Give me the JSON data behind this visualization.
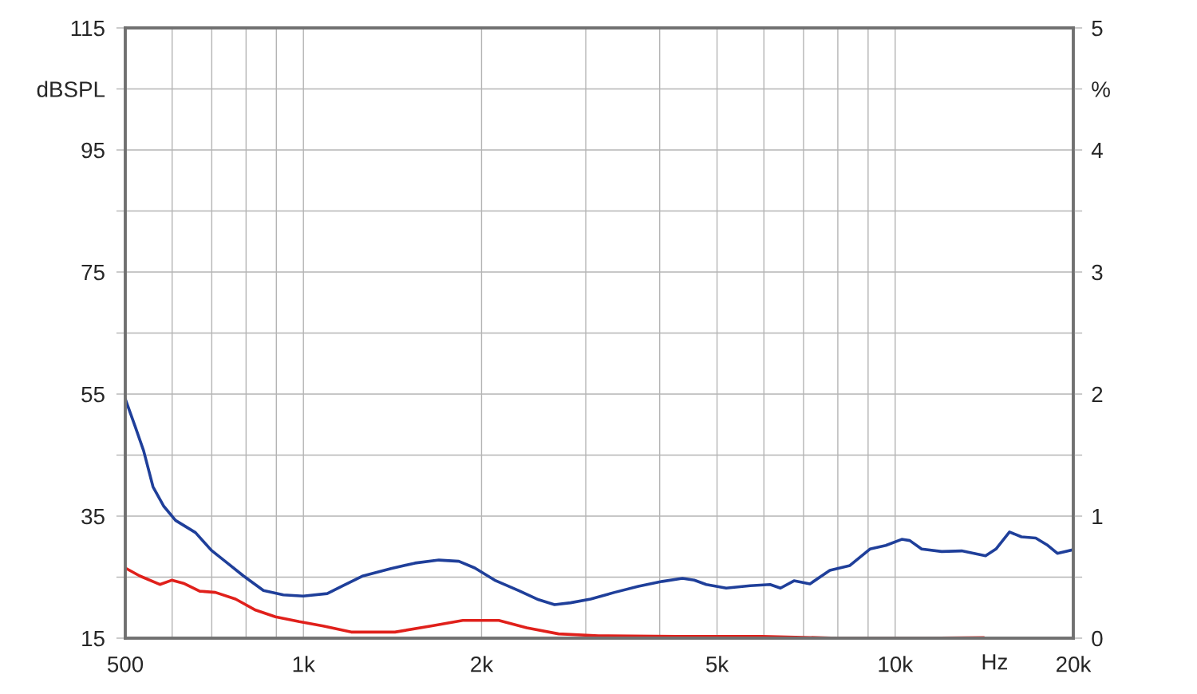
{
  "chart_data": {
    "type": "line",
    "log": "x",
    "grid": true,
    "xlabel": "Hz",
    "xlim": [
      500,
      20000
    ],
    "xticks": [
      {
        "value": 500,
        "label": "500"
      },
      {
        "value": 600,
        "label": null
      },
      {
        "value": 700,
        "label": null
      },
      {
        "value": 800,
        "label": null
      },
      {
        "value": 900,
        "label": null
      },
      {
        "value": 1000,
        "label": "1k"
      },
      {
        "value": 2000,
        "label": "2k"
      },
      {
        "value": 3000,
        "label": null
      },
      {
        "value": 4000,
        "label": null
      },
      {
        "value": 5000,
        "label": "5k"
      },
      {
        "value": 6000,
        "label": null
      },
      {
        "value": 7000,
        "label": null
      },
      {
        "value": 8000,
        "label": null
      },
      {
        "value": 9000,
        "label": null
      },
      {
        "value": 10000,
        "label": "10k"
      },
      {
        "value": 20000,
        "label": "20k"
      }
    ],
    "ylim": [
      15,
      115
    ],
    "yticks": [
      15,
      {
        "value": 25,
        "label": null
      },
      35,
      {
        "value": 45,
        "label": null
      },
      55,
      {
        "value": 65,
        "label": null
      },
      75,
      {
        "value": 85,
        "label": null
      },
      95,
      {
        "value": 105,
        "label": "dBSPL"
      },
      115
    ],
    "y2lim": [
      0,
      5
    ],
    "y2ticks": [
      0,
      {
        "value": 0.5,
        "label": null
      },
      1,
      {
        "value": 1.5,
        "label": null
      },
      2,
      {
        "value": 2.5,
        "label": null
      },
      3,
      {
        "value": 3.5,
        "label": null
      },
      4,
      {
        "value": 4.5,
        "label": "%"
      },
      5
    ],
    "series": [
      {
        "color": "#1f3f9a",
        "x": [
          500,
          520,
          537,
          557,
          581,
          608,
          657,
          699,
          744,
          792,
          856,
          925,
          999,
          1097,
          1167,
          1261,
          1406,
          1543,
          1694,
          1831,
          1948,
          2105,
          2311,
          2497,
          2657,
          2828,
          3057,
          3355,
          3682,
          4041,
          4369,
          4576,
          4795,
          5182,
          5687,
          6147,
          6400,
          6746,
          7178,
          7755,
          8384,
          9064,
          9642,
          10259,
          10584,
          11084,
          11983,
          12954,
          14214,
          14800,
          15602,
          16346,
          17281,
          18050,
          18796,
          20000
        ],
        "values": [
          54.2,
          49.6,
          45.7,
          39.8,
          36.6,
          34.3,
          32.3,
          29.4,
          27.3,
          25.2,
          22.8,
          22.1,
          21.9,
          22.3,
          23.6,
          25.2,
          26.4,
          27.3,
          27.8,
          27.6,
          26.5,
          24.5,
          22.8,
          21.3,
          20.5,
          20.8,
          21.4,
          22.5,
          23.5,
          24.3,
          24.8,
          24.5,
          23.8,
          23.2,
          23.6,
          23.8,
          23.2,
          24.4,
          23.9,
          26.1,
          26.9,
          29.6,
          30.2,
          31.2,
          31.0,
          29.6,
          29.2,
          29.3,
          28.5,
          29.6,
          32.4,
          31.6,
          31.4,
          30.3,
          28.9,
          29.5
        ]
      },
      {
        "color": "#e0201b",
        "x": [
          500,
          529,
          572,
          599,
          627,
          668,
          710,
          768,
          830,
          897,
          984,
          1080,
          1204,
          1428,
          1643,
          1859,
          2139,
          2384,
          2699,
          3153,
          4301,
          5959,
          8002,
          10919,
          14125
        ],
        "values": [
          26.5,
          25.2,
          23.8,
          24.5,
          24.0,
          22.7,
          22.5,
          21.4,
          19.6,
          18.5,
          17.7,
          17.0,
          16.0,
          16.0,
          17.0,
          17.9,
          17.9,
          16.7,
          15.7,
          15.4,
          15.3,
          15.3,
          15.0,
          15.0,
          15.1
        ]
      }
    ]
  }
}
